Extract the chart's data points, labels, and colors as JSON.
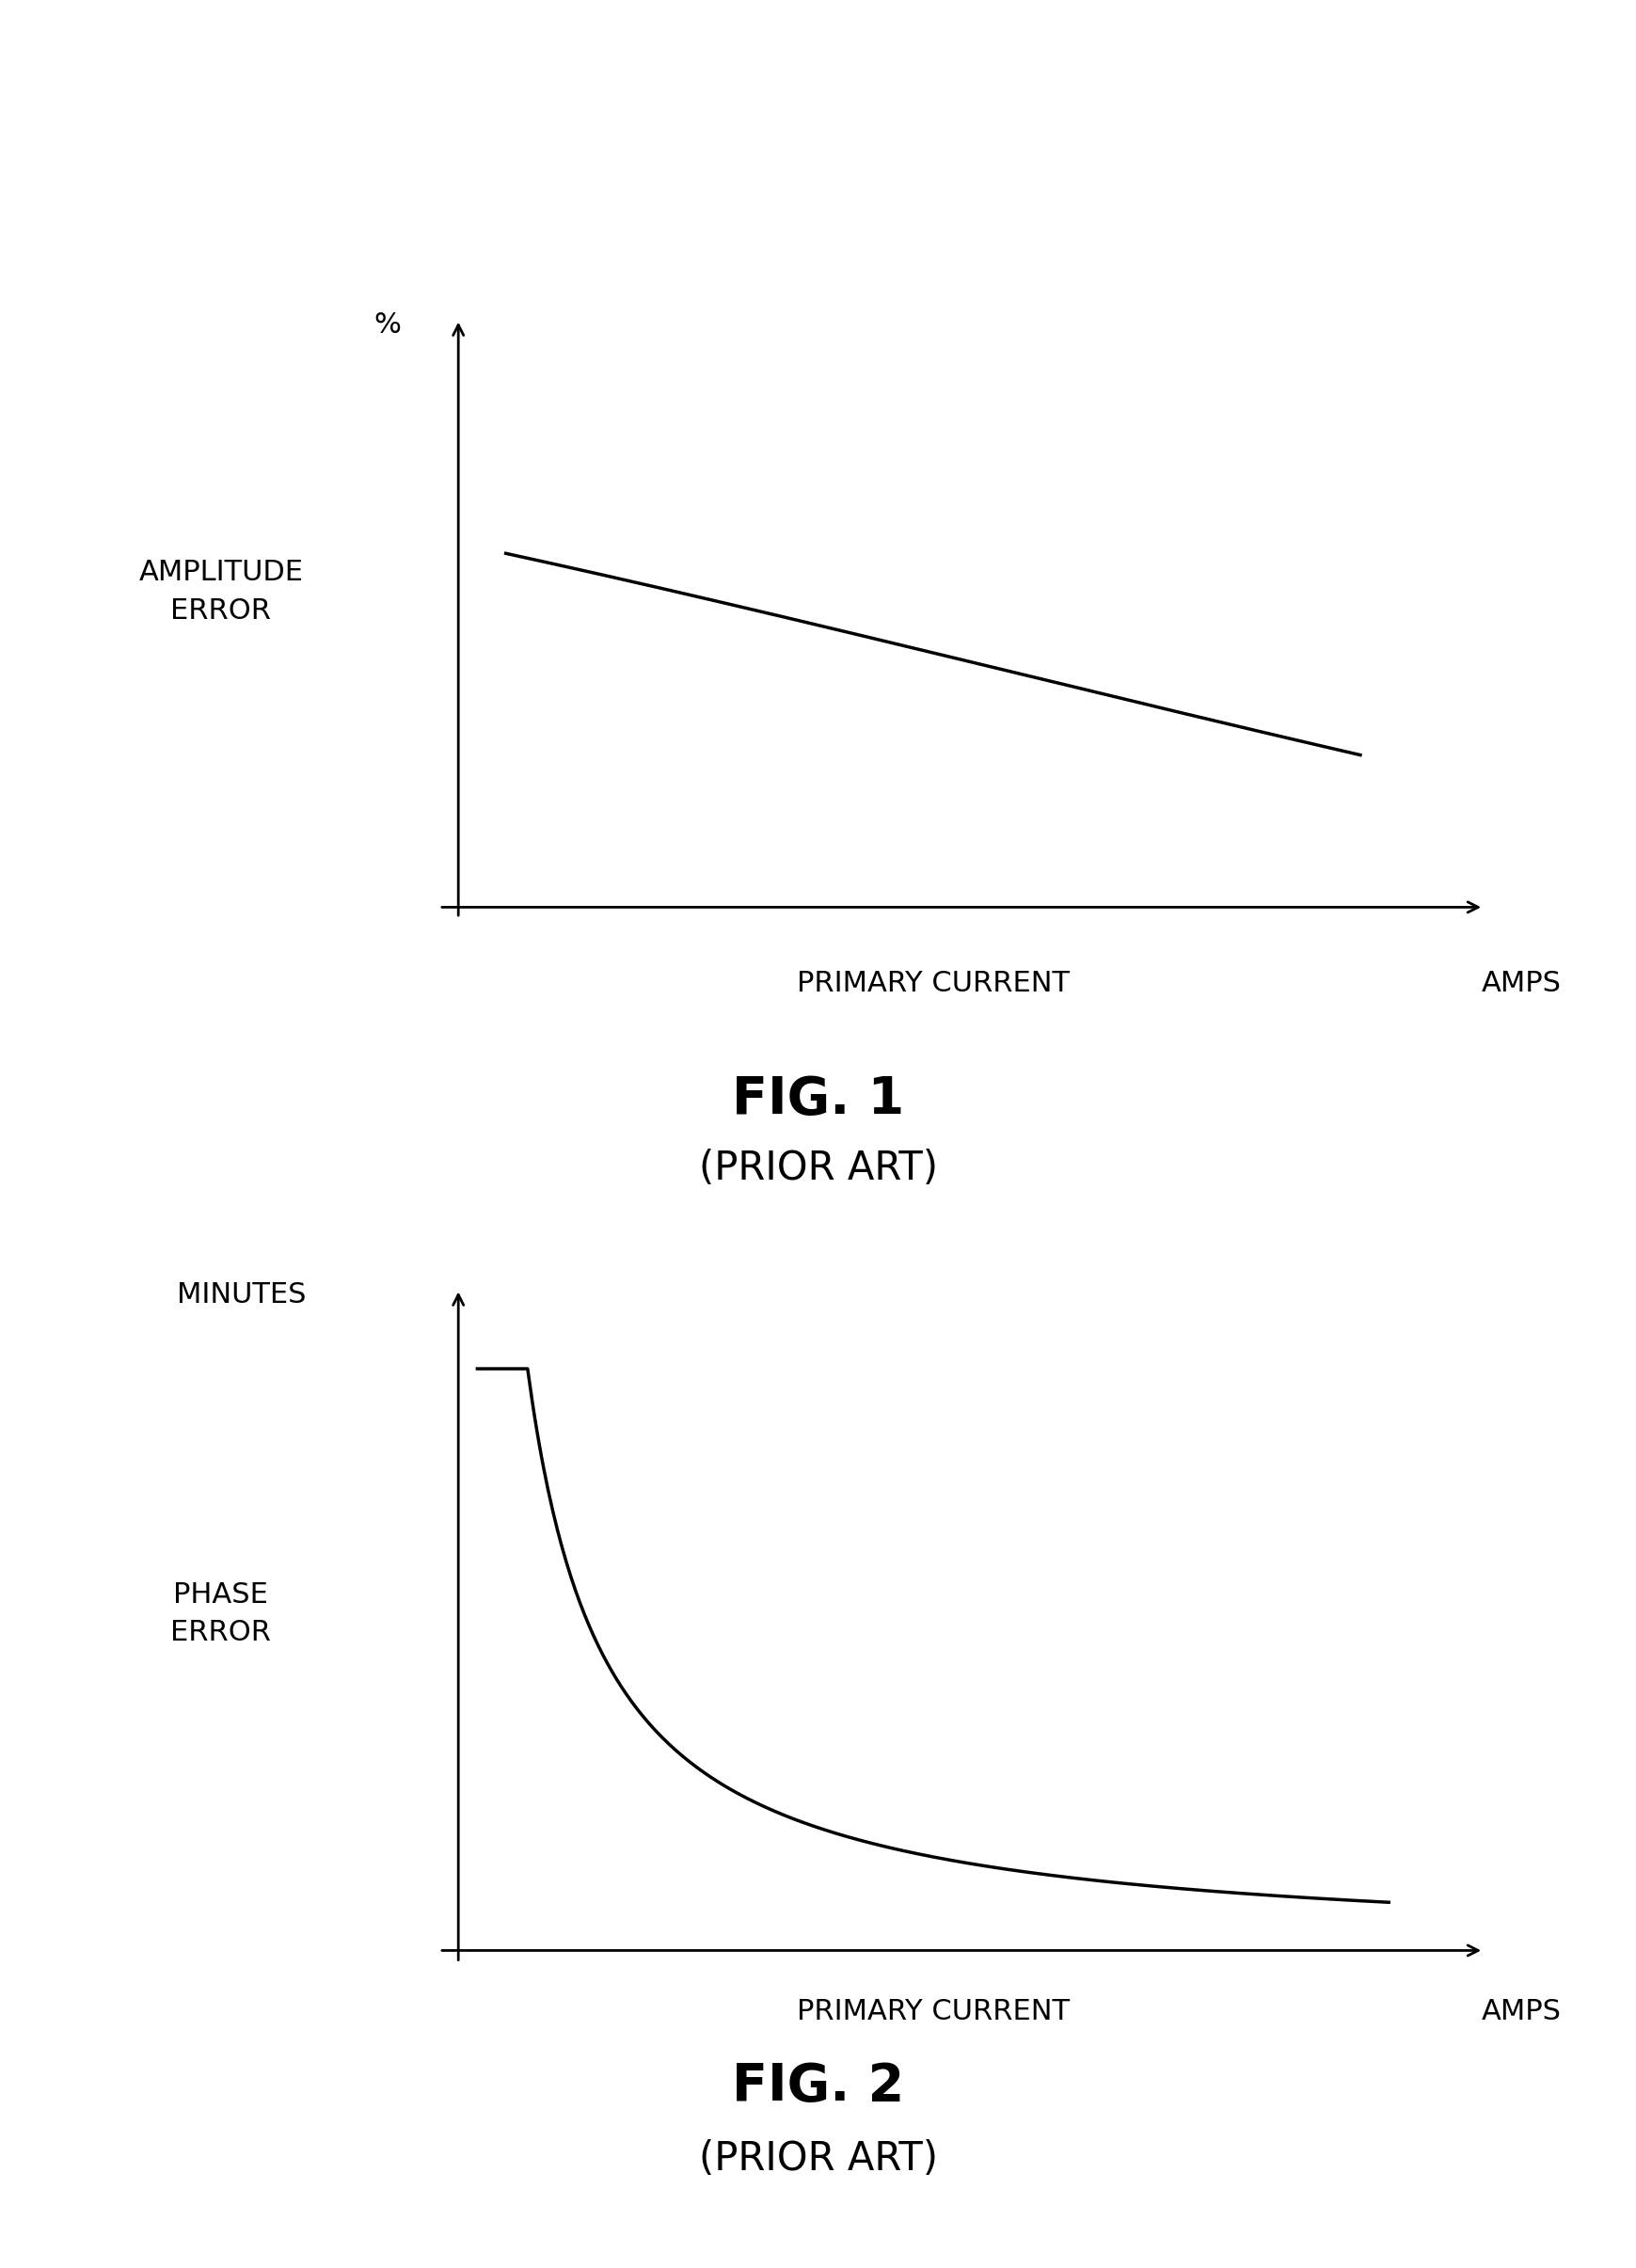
{
  "fig1_title": "FIG. 1",
  "fig1_subtitle": "(PRIOR ART)",
  "fig2_title": "FIG. 2",
  "fig2_subtitle": "(PRIOR ART)",
  "fig1_ylabel_top": "%",
  "fig1_ylabel_left": "AMPLITUDE\nERROR",
  "fig1_xlabel_center": "PRIMARY CURRENT",
  "fig1_xlabel_right": "AMPS",
  "fig2_ylabel_top": "MINUTES",
  "fig2_ylabel_left": "PHASE\nERROR",
  "fig2_xlabel_center": "PRIMARY CURRENT",
  "fig2_xlabel_right": "AMPS",
  "background_color": "#ffffff",
  "line_color": "#000000",
  "axis_color": "#000000",
  "text_color": "#000000",
  "title_fontsize": 40,
  "subtitle_fontsize": 30,
  "label_fontsize": 24,
  "axis_label_fontsize": 22
}
